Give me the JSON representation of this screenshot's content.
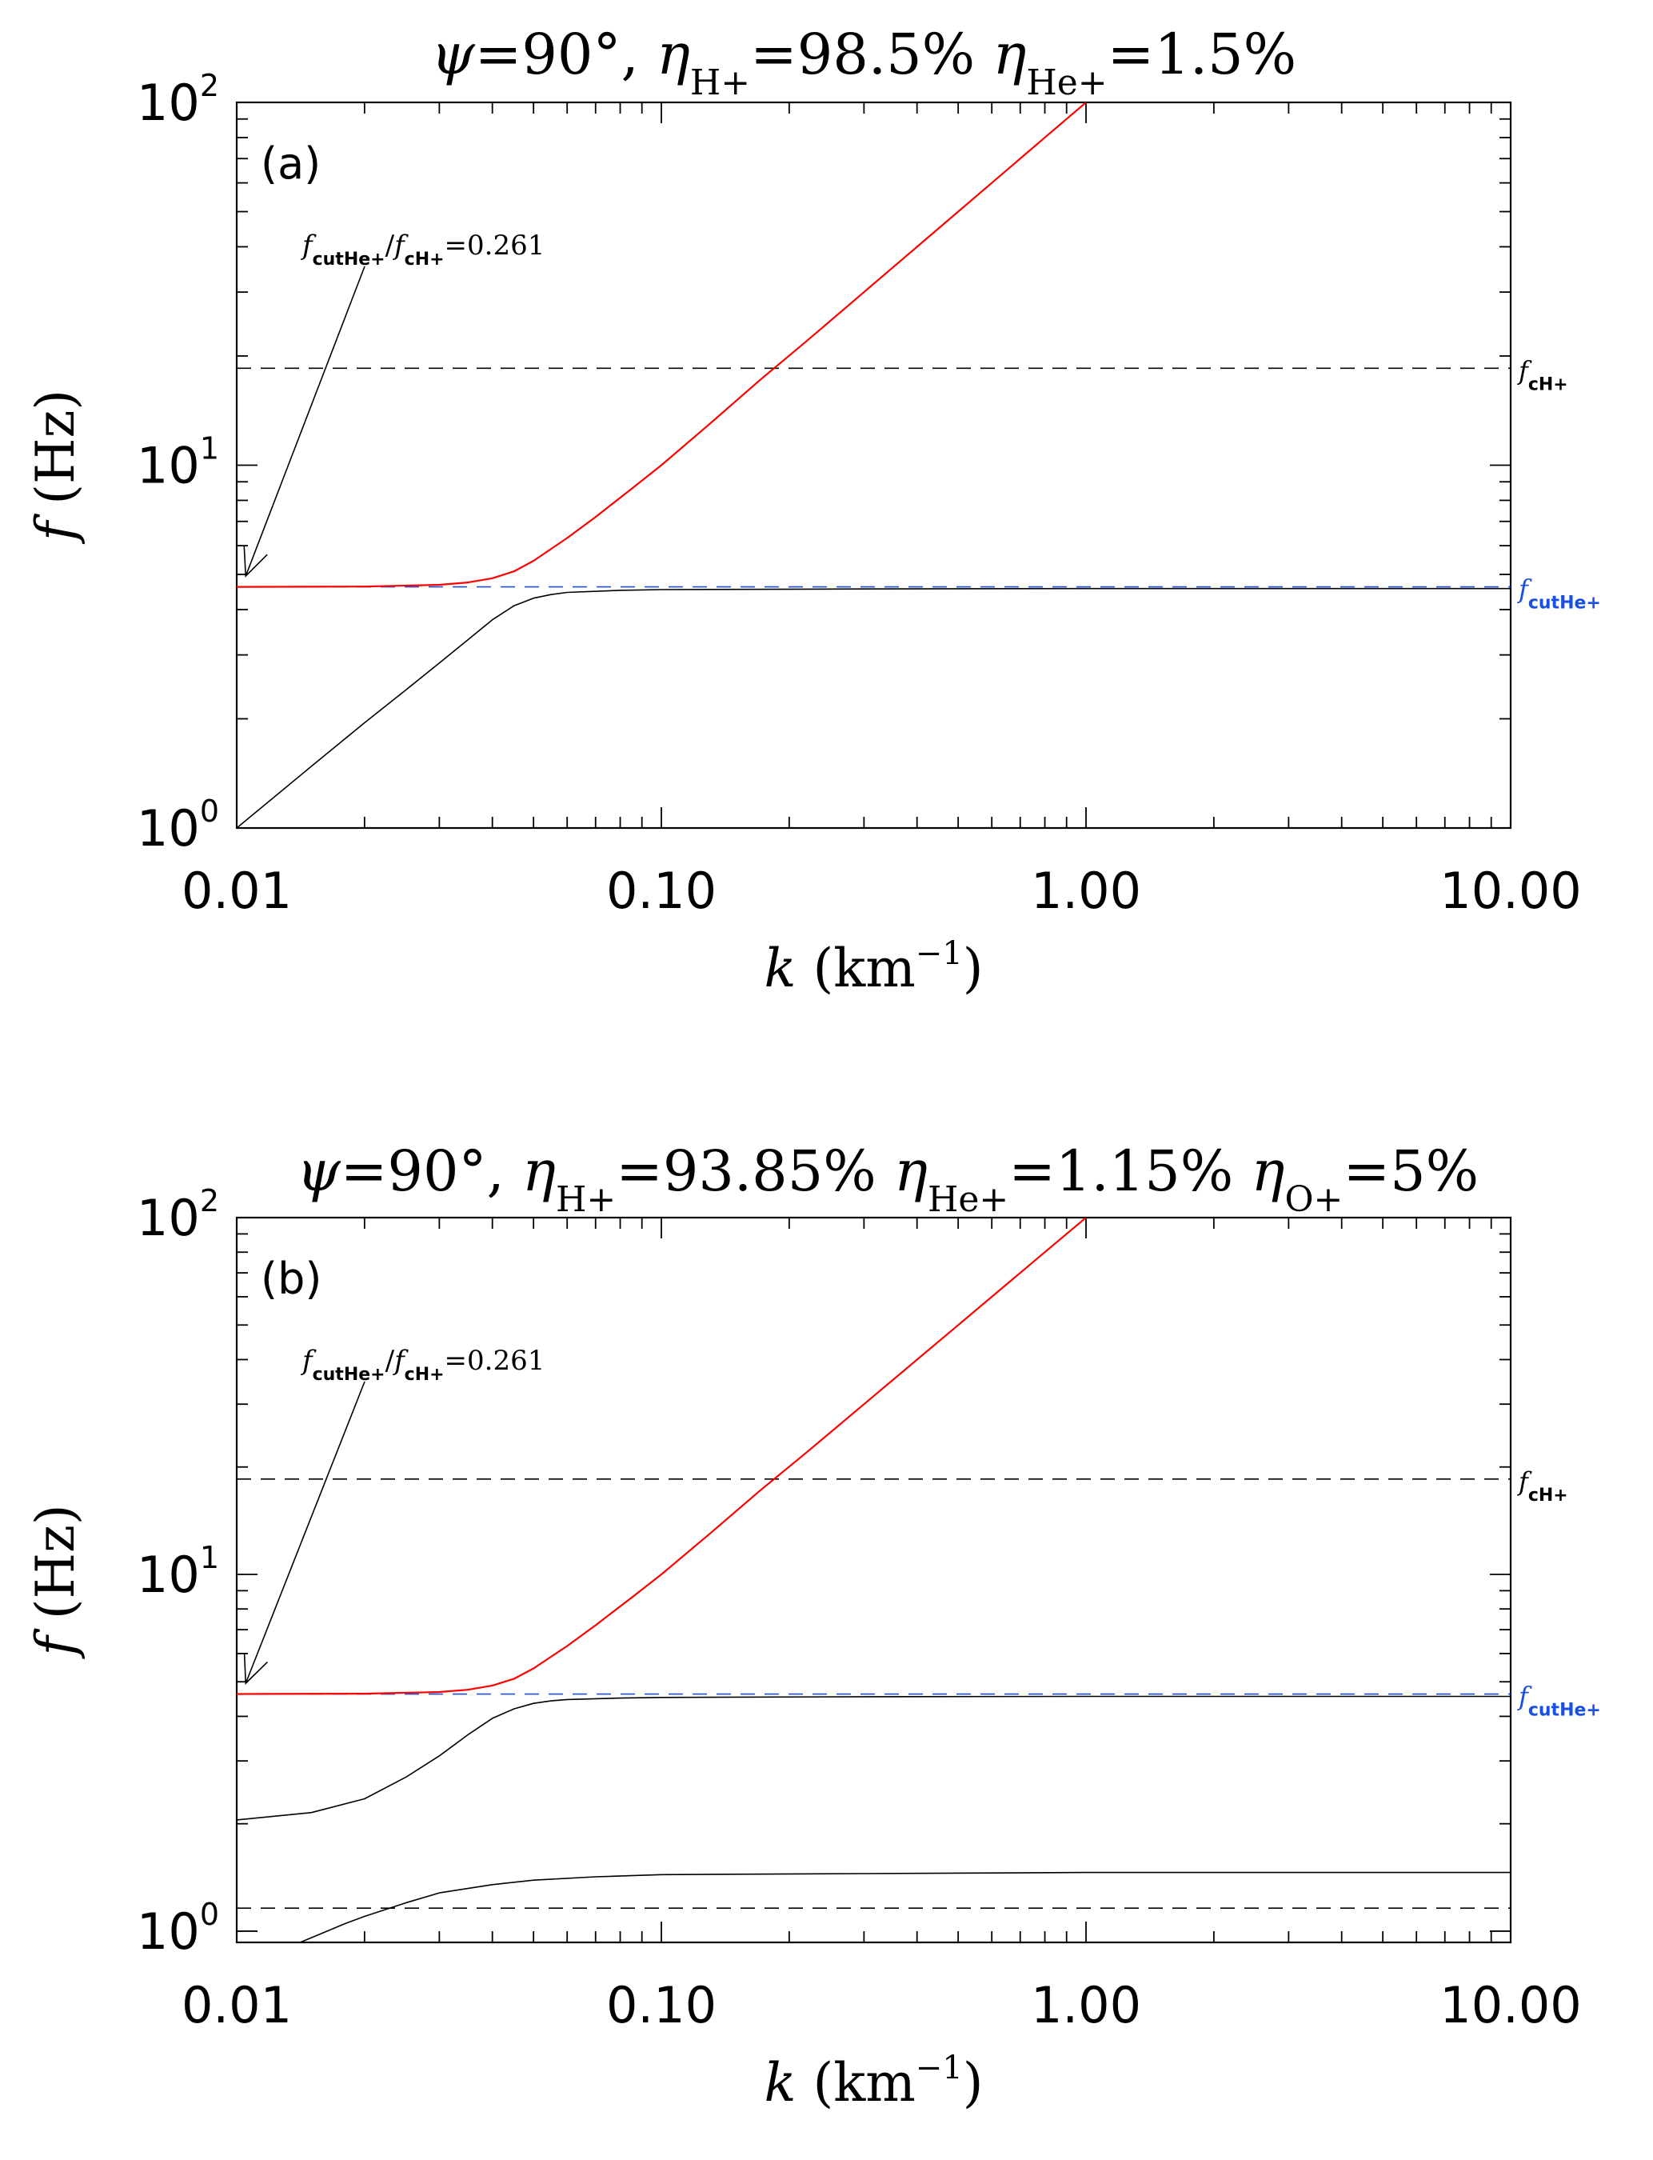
{
  "chart_data": [
    {
      "type": "line",
      "panel_label": "(a)",
      "title": "ψ=90°,  ηH+=98.5% ηHe+=1.5%",
      "title_parts": [
        {
          "t": "ψ",
          "kind": "italic"
        },
        {
          "t": "=90°,  ",
          "kind": "normal"
        },
        {
          "t": "η",
          "kind": "italic"
        },
        {
          "t": "H+",
          "kind": "sub"
        },
        {
          "t": "=98.5% ",
          "kind": "normal"
        },
        {
          "t": "η",
          "kind": "italic"
        },
        {
          "t": "He+",
          "kind": "sub"
        },
        {
          "t": "=1.5%",
          "kind": "normal"
        }
      ],
      "xlabel": "k (km⁻¹)",
      "ylabel": "f (Hz)",
      "xscale": "log",
      "yscale": "log",
      "xlim": [
        0.01,
        10
      ],
      "ylim": [
        1,
        100
      ],
      "x_tick_labels": [
        "0.01",
        "0.10",
        "1.00",
        "10.00"
      ],
      "y_tick_labels": [
        {
          "base": "10",
          "exp": "0"
        },
        {
          "base": "10",
          "exp": "1"
        },
        {
          "base": "10",
          "exp": "2"
        }
      ],
      "annotation": {
        "text": "fcutHe+/fcH+=0.261",
        "parts": [
          {
            "t": "f",
            "kind": "italic"
          },
          {
            "t": "cutHe+",
            "kind": "sub"
          },
          {
            "t": "/",
            "kind": "normal"
          },
          {
            "t": "f",
            "kind": "italic"
          },
          {
            "t": "cH+",
            "kind": "sub"
          },
          {
            "t": "=0.261",
            "kind": "normal"
          }
        ],
        "arrow_to": {
          "x": 0.0105,
          "y": 4.8
        }
      },
      "reference_lines": [
        {
          "label": "fcH+",
          "label_sub": "cH+",
          "y": 18.5,
          "color": "#000000",
          "dashed": true
        },
        {
          "label": "fcutHe+",
          "label_sub": "cutHe+",
          "y": 4.62,
          "color": "#1a4fe0",
          "dashed": true
        }
      ],
      "series": [
        {
          "color": "#ff0000",
          "width": 2.2,
          "x": [
            0.01,
            0.02,
            0.03,
            0.035,
            0.04,
            0.045,
            0.05,
            0.06,
            0.07,
            0.085,
            0.1,
            0.13,
            0.17,
            0.22,
            0.3,
            0.4,
            0.5,
            0.65,
            0.8,
            1.0
          ],
          "y": [
            4.62,
            4.63,
            4.68,
            4.75,
            4.88,
            5.1,
            5.45,
            6.3,
            7.2,
            8.6,
            10.0,
            13.0,
            17.1,
            22.0,
            30.0,
            40.0,
            50.0,
            65.0,
            80.0,
            100.0
          ]
        },
        {
          "color": "#000000",
          "width": 1.6,
          "x": [
            0.01,
            0.015,
            0.02,
            0.025,
            0.03,
            0.035,
            0.04,
            0.045,
            0.05,
            0.055,
            0.06,
            0.08,
            0.1,
            0.3,
            1.0,
            3.0,
            10.0
          ],
          "y": [
            1.0,
            1.48,
            1.95,
            2.4,
            2.85,
            3.3,
            3.75,
            4.1,
            4.3,
            4.4,
            4.46,
            4.52,
            4.54,
            4.56,
            4.57,
            4.57,
            4.57
          ]
        }
      ]
    },
    {
      "type": "line",
      "panel_label": "(b)",
      "title": "ψ=90°,   ηH+=93.85% ηHe+=1.15% ηO+=5%",
      "title_parts": [
        {
          "t": "ψ",
          "kind": "italic"
        },
        {
          "t": "=90°,   ",
          "kind": "normal"
        },
        {
          "t": "η",
          "kind": "italic"
        },
        {
          "t": "H+",
          "kind": "sub"
        },
        {
          "t": "=93.85% ",
          "kind": "normal"
        },
        {
          "t": "η",
          "kind": "italic"
        },
        {
          "t": "He+",
          "kind": "sub"
        },
        {
          "t": "=1.15% ",
          "kind": "normal"
        },
        {
          "t": "η",
          "kind": "italic"
        },
        {
          "t": "O+",
          "kind": "sub"
        },
        {
          "t": "=5%",
          "kind": "normal"
        }
      ],
      "xlabel": "k (km⁻¹)",
      "ylabel": "f (Hz)",
      "xscale": "log",
      "yscale": "log",
      "xlim": [
        0.01,
        10
      ],
      "ylim": [
        0.93,
        100
      ],
      "x_tick_labels": [
        "0.01",
        "0.10",
        "1.00",
        "10.00"
      ],
      "y_tick_labels": [
        {
          "base": "10",
          "exp": "0"
        },
        {
          "base": "10",
          "exp": "1"
        },
        {
          "base": "10",
          "exp": "2"
        }
      ],
      "annotation": {
        "text": "fcutHe+/fcH+=0.261",
        "parts": [
          {
            "t": "f",
            "kind": "italic"
          },
          {
            "t": "cutHe+",
            "kind": "sub"
          },
          {
            "t": "/",
            "kind": "normal"
          },
          {
            "t": "f",
            "kind": "italic"
          },
          {
            "t": "cH+",
            "kind": "sub"
          },
          {
            "t": "=0.261",
            "kind": "normal"
          }
        ],
        "arrow_to": {
          "x": 0.0105,
          "y": 4.8
        }
      },
      "reference_lines": [
        {
          "label": "fcH+",
          "label_sub": "cH+",
          "y": 18.5,
          "color": "#000000",
          "dashed": true
        },
        {
          "label": "fcutHe+",
          "label_sub": "cutHe+",
          "y": 4.62,
          "color": "#1a4fe0",
          "dashed": true
        },
        {
          "label": "",
          "label_sub": "",
          "y": 1.16,
          "color": "#000000",
          "dashed": true
        }
      ],
      "series": [
        {
          "color": "#ff0000",
          "width": 2.2,
          "x": [
            0.01,
            0.02,
            0.03,
            0.035,
            0.04,
            0.045,
            0.05,
            0.06,
            0.07,
            0.085,
            0.1,
            0.13,
            0.17,
            0.22,
            0.3,
            0.4,
            0.5,
            0.65,
            0.8,
            1.0
          ],
          "y": [
            4.62,
            4.63,
            4.68,
            4.75,
            4.88,
            5.1,
            5.45,
            6.3,
            7.2,
            8.6,
            10.0,
            13.0,
            17.1,
            22.0,
            30.0,
            40.0,
            50.0,
            65.0,
            80.0,
            100.0
          ]
        },
        {
          "color": "#000000",
          "width": 1.6,
          "x": [
            0.01,
            0.015,
            0.02,
            0.025,
            0.03,
            0.035,
            0.04,
            0.045,
            0.05,
            0.055,
            0.06,
            0.08,
            0.1,
            0.3,
            1.0,
            10.0
          ],
          "y": [
            2.05,
            2.15,
            2.35,
            2.7,
            3.1,
            3.55,
            3.95,
            4.2,
            4.35,
            4.42,
            4.46,
            4.5,
            4.52,
            4.54,
            4.55,
            4.55
          ]
        },
        {
          "color": "#000000",
          "width": 1.6,
          "x": [
            0.0141,
            0.016,
            0.018,
            0.02,
            0.025,
            0.03,
            0.04,
            0.05,
            0.07,
            0.1,
            0.3,
            1.0,
            10.0
          ],
          "y": [
            0.93,
            0.99,
            1.05,
            1.1,
            1.2,
            1.28,
            1.35,
            1.39,
            1.42,
            1.44,
            1.45,
            1.46,
            1.46
          ]
        }
      ]
    }
  ]
}
